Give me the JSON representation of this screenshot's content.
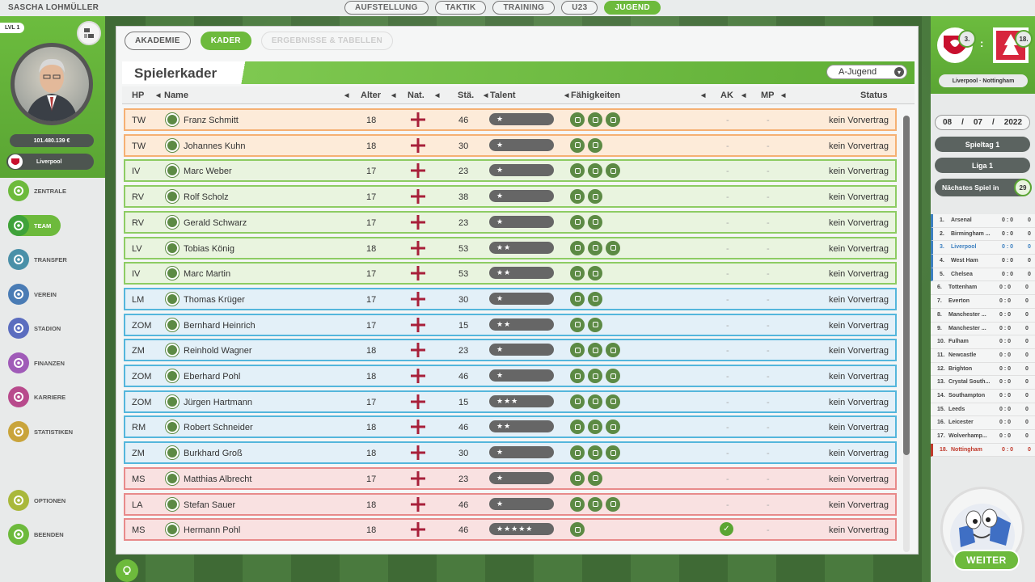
{
  "manager_name": "SASCHA LOHMÜLLER",
  "top_tabs": [
    {
      "label": "AUFSTELLUNG"
    },
    {
      "label": "TAKTIK"
    },
    {
      "label": "TRAINING"
    },
    {
      "label": "U23"
    },
    {
      "label": "JUGEND",
      "active": true
    }
  ],
  "profile": {
    "level": "LVL 1",
    "budget": "101.480.139 €",
    "club": "Liverpool"
  },
  "nav": [
    {
      "label": "ZENTRALE",
      "icon": "ball-icon",
      "color": "#6dba3c"
    },
    {
      "label": "TEAM",
      "icon": "players-icon",
      "color": "#3fa23a",
      "active": true
    },
    {
      "label": "TRANSFER",
      "icon": "transfer-icon",
      "color": "#4a90a8"
    },
    {
      "label": "VEREIN",
      "icon": "shield-icon",
      "color": "#4a7cb5"
    },
    {
      "label": "STADION",
      "icon": "stadium-icon",
      "color": "#5b6dbf"
    },
    {
      "label": "FINANZEN",
      "icon": "money-icon",
      "color": "#a05bb8"
    },
    {
      "label": "KARRIERE",
      "icon": "house-icon",
      "color": "#b84a8c"
    },
    {
      "label": "STATISTIKEN",
      "icon": "stats-icon",
      "color": "#c9a43b"
    },
    {
      "label": "OPTIONEN",
      "icon": "gear-icon",
      "color": "#a9b83b"
    },
    {
      "label": "BEENDEN",
      "icon": "exit-icon",
      "color": "#6dba3c"
    }
  ],
  "sub_tabs": [
    {
      "label": "AKADEMIE"
    },
    {
      "label": "KADER",
      "active": true
    },
    {
      "label": "ERGEBNISSE & TABELLEN",
      "disabled": true
    }
  ],
  "panel": {
    "title": "Spielerkader",
    "team_select": "A-Jugend"
  },
  "columns": {
    "hp": "HP",
    "name": "Name",
    "age": "Alter",
    "nat": "Nat.",
    "str": "Stä.",
    "talent": "Talent",
    "skills": "Fähigkeiten",
    "ak": "AK",
    "mp": "MP",
    "status": "Status"
  },
  "players": [
    {
      "pos": "TW",
      "group": "gk",
      "name": "Franz Schmitt",
      "age": "18",
      "str": "46",
      "talent": "★",
      "skills": 3,
      "ak": "-",
      "mp": "-",
      "status": "kein Vorvertrag"
    },
    {
      "pos": "TW",
      "group": "gk",
      "name": "Johannes Kuhn",
      "age": "18",
      "str": "30",
      "talent": "★",
      "skills": 2,
      "ak": "-",
      "mp": "-",
      "status": "kein Vorvertrag"
    },
    {
      "pos": "IV",
      "group": "df",
      "name": "Marc Weber",
      "age": "17",
      "str": "23",
      "talent": "★",
      "skills": 3,
      "ak": "-",
      "mp": "-",
      "status": "kein Vorvertrag"
    },
    {
      "pos": "RV",
      "group": "df",
      "name": "Rolf Scholz",
      "age": "17",
      "str": "38",
      "talent": "★",
      "skills": 2,
      "ak": "-",
      "mp": "-",
      "status": "kein Vorvertrag"
    },
    {
      "pos": "RV",
      "group": "df",
      "name": "Gerald Schwarz",
      "age": "17",
      "str": "23",
      "talent": "★",
      "skills": 2,
      "ak": "-",
      "mp": "-",
      "status": "kein Vorvertrag"
    },
    {
      "pos": "LV",
      "group": "df",
      "name": "Tobias König",
      "age": "18",
      "str": "53",
      "talent": "★★",
      "skills": 3,
      "ak": "-",
      "mp": "-",
      "status": "kein Vorvertrag"
    },
    {
      "pos": "IV",
      "group": "df",
      "name": "Marc Martin",
      "age": "17",
      "str": "53",
      "talent": "★★",
      "skills": 2,
      "ak": "-",
      "mp": "-",
      "status": "kein Vorvertrag"
    },
    {
      "pos": "LM",
      "group": "mf",
      "name": "Thomas Krüger",
      "age": "17",
      "str": "30",
      "talent": "★",
      "skills": 2,
      "ak": "-",
      "mp": "-",
      "status": "kein Vorvertrag"
    },
    {
      "pos": "ZOM",
      "group": "mf",
      "name": "Bernhard Heinrich",
      "age": "17",
      "str": "15",
      "talent": "★★",
      "skills": 2,
      "ak": "-",
      "mp": "-",
      "status": "kein Vorvertrag"
    },
    {
      "pos": "ZM",
      "group": "mf",
      "name": "Reinhold Wagner",
      "age": "18",
      "str": "23",
      "talent": "★",
      "skills": 3,
      "ak": "-",
      "mp": "-",
      "status": "kein Vorvertrag"
    },
    {
      "pos": "ZOM",
      "group": "mf",
      "name": "Eberhard Pohl",
      "age": "18",
      "str": "46",
      "talent": "★",
      "skills": 3,
      "ak": "-",
      "mp": "-",
      "status": "kein Vorvertrag"
    },
    {
      "pos": "ZOM",
      "group": "mf",
      "name": "Jürgen Hartmann",
      "age": "17",
      "str": "15",
      "talent": "★★★",
      "skills": 3,
      "ak": "-",
      "mp": "-",
      "status": "kein Vorvertrag"
    },
    {
      "pos": "RM",
      "group": "mf",
      "name": "Robert Schneider",
      "age": "18",
      "str": "46",
      "talent": "★★",
      "skills": 3,
      "ak": "-",
      "mp": "-",
      "status": "kein Vorvertrag"
    },
    {
      "pos": "ZM",
      "group": "mf",
      "name": "Burkhard Groß",
      "age": "18",
      "str": "30",
      "talent": "★",
      "skills": 3,
      "ak": "-",
      "mp": "-",
      "status": "kein Vorvertrag"
    },
    {
      "pos": "MS",
      "group": "fw",
      "name": "Matthias Albrecht",
      "age": "17",
      "str": "23",
      "talent": "★",
      "skills": 2,
      "ak": "-",
      "mp": "-",
      "status": "kein Vorvertrag"
    },
    {
      "pos": "LA",
      "group": "fw",
      "name": "Stefan Sauer",
      "age": "18",
      "str": "46",
      "talent": "★",
      "skills": 3,
      "ak": "-",
      "mp": "-",
      "status": "kein Vorvertrag"
    },
    {
      "pos": "MS",
      "group": "fw",
      "name": "Hermann Pohl",
      "age": "18",
      "str": "46",
      "talent": "★★★★★",
      "skills": 1,
      "ak_check": true,
      "ak": "",
      "mp": "-",
      "status": "kein Vorvertrag"
    }
  ],
  "next_match": {
    "home_rank": "3.",
    "away_rank": "18.",
    "separator": ":",
    "names": "Liverpool · Nottingham",
    "date_day": "08",
    "date_sep": "/",
    "date_month": "07",
    "date_year": "2022",
    "matchday": "Spieltag 1",
    "league": "Liga 1",
    "next_label": "Nächstes Spiel in",
    "next_count": "29"
  },
  "league_table": [
    {
      "pos": "1.",
      "team": "Arsenal",
      "score": "0 : 0",
      "pts": "0",
      "zone": "cl"
    },
    {
      "pos": "2.",
      "team": "Birmingham ...",
      "score": "0 : 0",
      "pts": "0",
      "zone": "cl"
    },
    {
      "pos": "3.",
      "team": "Liverpool",
      "score": "0 : 0",
      "pts": "0",
      "zone": "cl",
      "highlight": "me"
    },
    {
      "pos": "4.",
      "team": "West Ham",
      "score": "0 : 0",
      "pts": "0",
      "zone": "cl"
    },
    {
      "pos": "5.",
      "team": "Chelsea",
      "score": "0 : 0",
      "pts": "0",
      "zone": "cl"
    },
    {
      "pos": "6.",
      "team": "Tottenham",
      "score": "0 : 0",
      "pts": "0"
    },
    {
      "pos": "7.",
      "team": "Everton",
      "score": "0 : 0",
      "pts": "0"
    },
    {
      "pos": "8.",
      "team": "Manchester ...",
      "score": "0 : 0",
      "pts": "0"
    },
    {
      "pos": "9.",
      "team": "Manchester ...",
      "score": "0 : 0",
      "pts": "0"
    },
    {
      "pos": "10.",
      "team": "Fulham",
      "score": "0 : 0",
      "pts": "0"
    },
    {
      "pos": "11.",
      "team": "Newcastle",
      "score": "0 : 0",
      "pts": "0"
    },
    {
      "pos": "12.",
      "team": "Brighton",
      "score": "0 : 0",
      "pts": "0"
    },
    {
      "pos": "13.",
      "team": "Crystal South...",
      "score": "0 : 0",
      "pts": "0"
    },
    {
      "pos": "14.",
      "team": "Southampton",
      "score": "0 : 0",
      "pts": "0"
    },
    {
      "pos": "15.",
      "team": "Leeds",
      "score": "0 : 0",
      "pts": "0"
    },
    {
      "pos": "16.",
      "team": "Leicester",
      "score": "0 : 0",
      "pts": "0"
    },
    {
      "pos": "17.",
      "team": "Wolverhamp...",
      "score": "0 : 0",
      "pts": "0"
    },
    {
      "pos": "18.",
      "team": "Nottingham",
      "score": "0 : 0",
      "pts": "0",
      "zone": "rel",
      "highlight": "opp"
    }
  ],
  "continue_label": "WEITER",
  "colors": {
    "accent": "#6dba3c",
    "gk": "#f5b073",
    "df": "#8dcc63",
    "mf": "#54b6dc",
    "fw": "#e88a8a",
    "own_club": "#3c7fc0",
    "opponent": "#c0392b"
  }
}
